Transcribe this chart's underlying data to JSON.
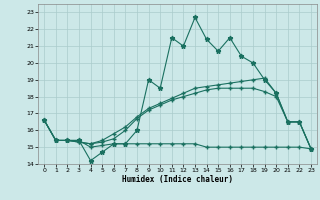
{
  "xlabel": "Humidex (Indice chaleur)",
  "background_color": "#cce8e8",
  "grid_color": "#aacccc",
  "line_color": "#1a7060",
  "xlim": [
    -0.5,
    23.5
  ],
  "ylim": [
    14,
    23.5
  ],
  "yticks": [
    14,
    15,
    16,
    17,
    18,
    19,
    20,
    21,
    22,
    23
  ],
  "xticks": [
    0,
    1,
    2,
    3,
    4,
    5,
    6,
    7,
    8,
    9,
    10,
    11,
    12,
    13,
    14,
    15,
    16,
    17,
    18,
    19,
    20,
    21,
    22,
    23
  ],
  "line1_x": [
    0,
    1,
    2,
    3,
    4,
    5,
    6,
    7,
    8,
    9,
    10,
    11,
    12,
    13,
    14,
    15,
    16,
    17,
    18,
    19,
    20,
    21,
    22,
    23
  ],
  "line1_y": [
    16.6,
    15.4,
    15.4,
    15.4,
    14.2,
    14.7,
    15.2,
    15.2,
    16.0,
    19.0,
    18.5,
    21.5,
    21.0,
    22.7,
    21.4,
    20.7,
    21.5,
    20.4,
    20.0,
    19.0,
    18.2,
    16.5,
    16.5,
    14.9
  ],
  "line2_x": [
    0,
    1,
    2,
    3,
    4,
    5,
    6,
    7,
    8,
    9,
    10,
    11,
    12,
    13,
    14,
    15,
    16,
    17,
    18,
    19,
    20,
    21,
    22,
    23
  ],
  "line2_y": [
    16.6,
    15.4,
    15.4,
    15.4,
    15.0,
    15.1,
    15.2,
    15.2,
    15.2,
    15.2,
    15.2,
    15.2,
    15.2,
    15.2,
    15.0,
    15.0,
    15.0,
    15.0,
    15.0,
    15.0,
    15.0,
    15.0,
    15.0,
    14.9
  ],
  "line3_x": [
    0,
    1,
    2,
    3,
    4,
    5,
    6,
    7,
    8,
    9,
    10,
    11,
    12,
    13,
    14,
    15,
    16,
    17,
    18,
    19,
    20,
    21,
    22,
    23
  ],
  "line3_y": [
    16.6,
    15.4,
    15.4,
    15.3,
    15.2,
    15.3,
    15.5,
    16.0,
    16.7,
    17.2,
    17.5,
    17.8,
    18.0,
    18.2,
    18.4,
    18.5,
    18.5,
    18.5,
    18.5,
    18.3,
    18.0,
    16.5,
    16.5,
    14.9
  ],
  "line4_x": [
    0,
    1,
    2,
    3,
    4,
    5,
    6,
    7,
    8,
    9,
    10,
    11,
    12,
    13,
    14,
    15,
    16,
    17,
    18,
    19,
    20,
    21,
    22,
    23
  ],
  "line4_y": [
    16.6,
    15.4,
    15.4,
    15.3,
    15.2,
    15.4,
    15.8,
    16.2,
    16.8,
    17.3,
    17.6,
    17.9,
    18.2,
    18.5,
    18.6,
    18.7,
    18.8,
    18.9,
    19.0,
    19.1,
    18.2,
    16.5,
    16.5,
    14.9
  ]
}
